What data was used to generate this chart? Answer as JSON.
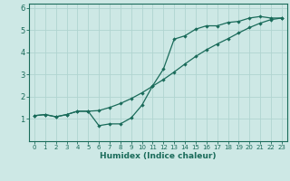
{
  "xlabel": "Humidex (Indice chaleur)",
  "ylabel": "",
  "background_color": "#cde8e5",
  "line_color": "#1a6b5a",
  "grid_color": "#b0d4d0",
  "xlim": [
    -0.5,
    23.5
  ],
  "ylim": [
    0,
    6.2
  ],
  "xticks": [
    0,
    1,
    2,
    3,
    4,
    5,
    6,
    7,
    8,
    9,
    10,
    11,
    12,
    13,
    14,
    15,
    16,
    17,
    18,
    19,
    20,
    21,
    22,
    23
  ],
  "yticks": [
    1,
    2,
    3,
    4,
    5,
    6
  ],
  "line1_x": [
    0,
    1,
    2,
    3,
    4,
    5,
    6,
    7,
    8,
    9,
    10,
    11,
    12,
    13,
    14,
    15,
    16,
    17,
    18,
    19,
    20,
    21,
    22,
    23
  ],
  "line1_y": [
    1.15,
    1.2,
    1.1,
    1.2,
    1.35,
    1.35,
    0.7,
    0.78,
    0.78,
    1.05,
    1.62,
    2.5,
    3.25,
    4.6,
    4.75,
    5.05,
    5.2,
    5.2,
    5.35,
    5.4,
    5.55,
    5.62,
    5.55,
    5.55
  ],
  "line2_x": [
    0,
    1,
    2,
    3,
    4,
    5,
    6,
    7,
    8,
    9,
    10,
    11,
    12,
    13,
    14,
    15,
    16,
    17,
    18,
    19,
    20,
    21,
    22,
    23
  ],
  "line2_y": [
    1.15,
    1.2,
    1.1,
    1.2,
    1.35,
    1.35,
    1.38,
    1.52,
    1.7,
    1.92,
    2.18,
    2.48,
    2.78,
    3.12,
    3.48,
    3.82,
    4.12,
    4.38,
    4.62,
    4.88,
    5.12,
    5.32,
    5.48,
    5.55
  ]
}
